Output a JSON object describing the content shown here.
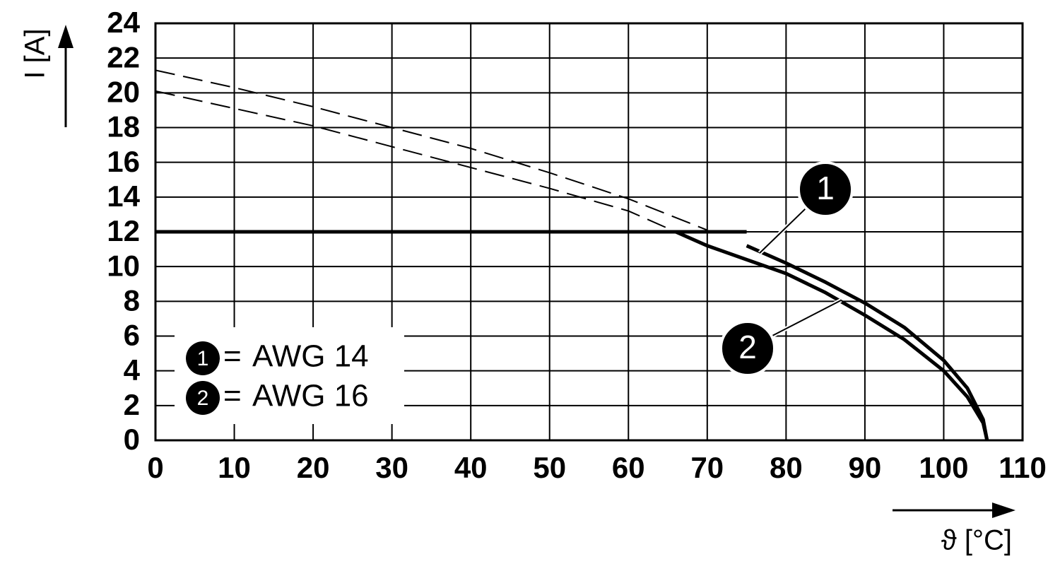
{
  "chart_data": {
    "type": "line",
    "ylabel": "I [A]",
    "xlabel": "ϑ [°C]",
    "xlim": [
      0,
      110
    ],
    "xticks": [
      0,
      10,
      20,
      30,
      40,
      50,
      60,
      70,
      80,
      90,
      100,
      110
    ],
    "ylim": [
      0,
      24
    ],
    "yticks": [
      0,
      2,
      4,
      6,
      8,
      10,
      12,
      14,
      16,
      18,
      20,
      22,
      24
    ],
    "grid": true,
    "limit": 12,
    "legend_separator": "=",
    "color": "#000000",
    "series": [
      {
        "name": "AWG 14",
        "label": "1",
        "x": [
          0,
          10,
          20,
          30,
          40,
          50,
          60,
          65,
          70,
          75,
          80,
          85,
          90,
          95,
          100,
          103,
          105,
          105.5
        ],
        "values": [
          21.3,
          20.3,
          19.2,
          18.0,
          16.8,
          15.4,
          13.9,
          13.0,
          12.1,
          11.2,
          10.2,
          9.1,
          7.9,
          6.5,
          4.6,
          3.0,
          1.2,
          0
        ]
      },
      {
        "name": "AWG 16",
        "label": "2",
        "x": [
          0,
          10,
          20,
          30,
          40,
          50,
          60,
          66,
          70,
          75,
          80,
          85,
          90,
          95,
          100,
          103,
          105,
          105.5
        ],
        "values": [
          20.1,
          19.1,
          18.1,
          16.9,
          15.7,
          14.5,
          13.2,
          12.0,
          11.2,
          10.4,
          9.6,
          8.5,
          7.2,
          5.8,
          4.0,
          2.5,
          1.0,
          0
        ]
      }
    ]
  }
}
